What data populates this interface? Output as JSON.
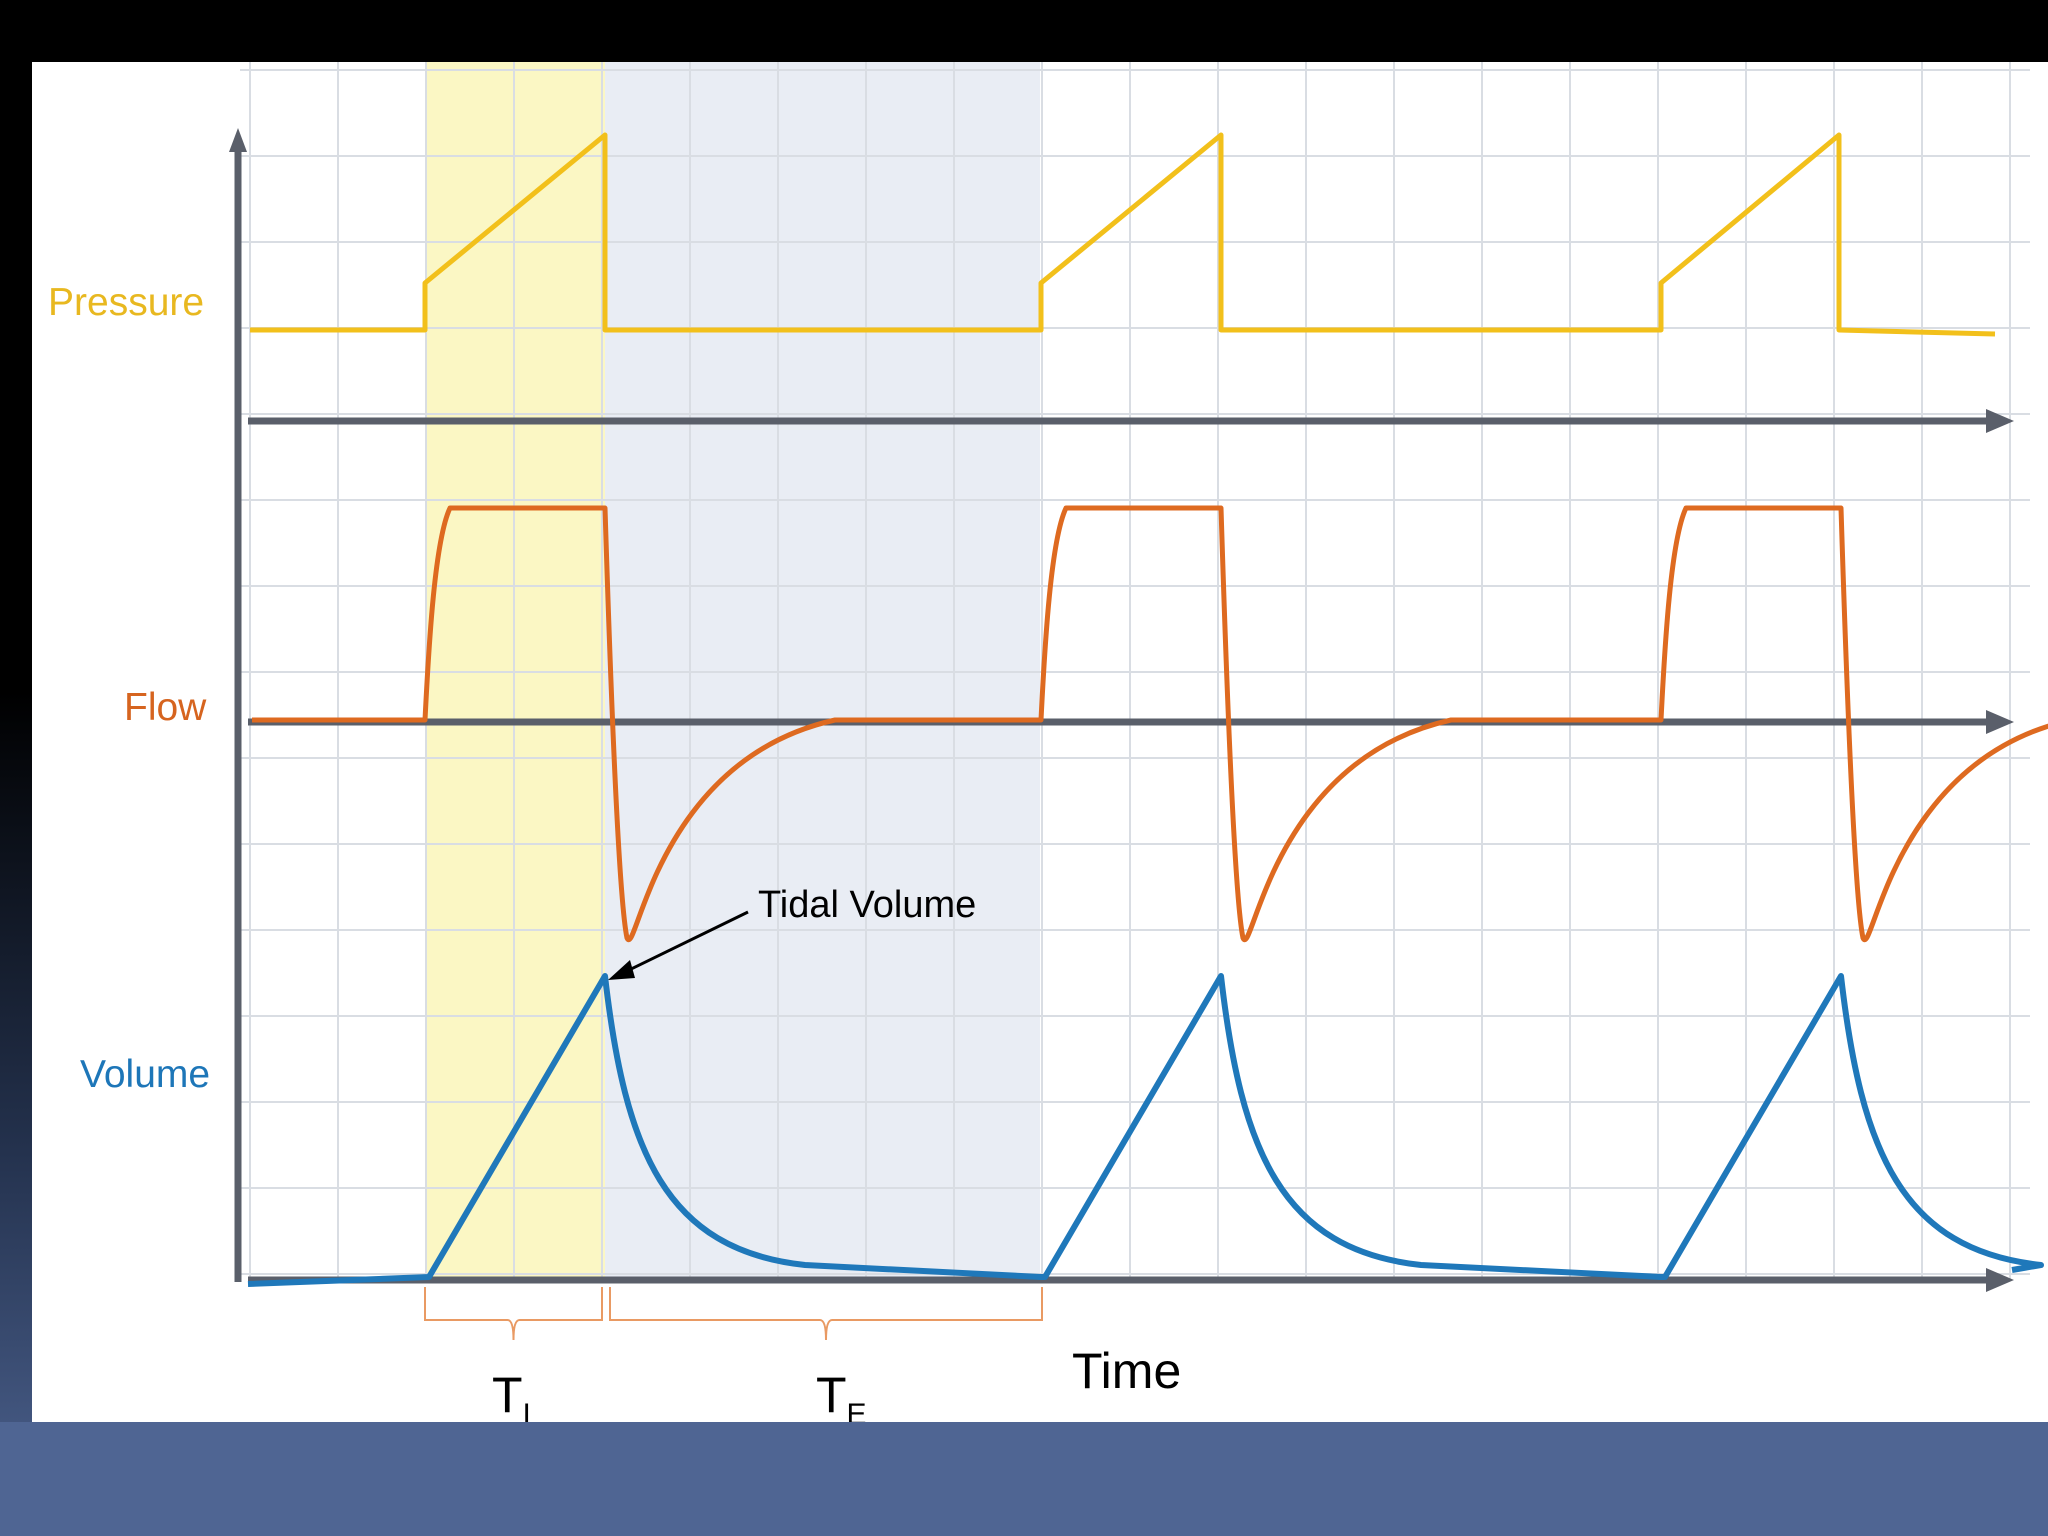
{
  "labels": {
    "pressure": "Pressure",
    "flow": "Flow",
    "volume": "Volume",
    "tidal_volume": "Tidal Volume",
    "time": "Time",
    "ti_main": "T",
    "ti_sub": "I",
    "te_main": "T",
    "te_sub": "E"
  },
  "colors": {
    "pressure": "#f2c01b",
    "flow": "#de6a20",
    "volume": "#1f78ba",
    "axis": "#5a5f6a",
    "grid": "#d9dde3",
    "inspiration_shade": "#fbf7c4",
    "expiration_shade": "#e9edf4",
    "bracket": "#e99a63"
  },
  "waveforms": {
    "cycles": 3,
    "phases": [
      "inspiration",
      "expiration"
    ],
    "pressure_shape": "step then linear ramp",
    "flow_shape": "square inspiratory, exponential expiratory",
    "volume_shape": "linear rise, exponential fall"
  }
}
